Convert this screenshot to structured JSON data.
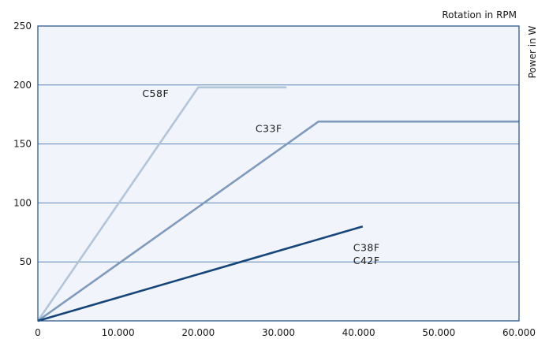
{
  "chart_data": {
    "type": "line",
    "title": "",
    "xlabel": "Rotation in RPM",
    "ylabel": "Power in W",
    "xlim": [
      0,
      60000
    ],
    "ylim": [
      0,
      250
    ],
    "x_ticks": [
      0,
      10000,
      20000,
      30000,
      40000,
      50000,
      60000
    ],
    "x_tick_labels": [
      "0",
      "10.000",
      "20.000",
      "30.000",
      "40.000",
      "50.000",
      "60.000"
    ],
    "y_ticks": [
      50,
      100,
      150,
      200,
      250
    ],
    "y_tick_labels": [
      "50",
      "100",
      "150",
      "200",
      "250"
    ],
    "grid": "horizontal",
    "series": [
      {
        "name": "C58F",
        "color": "#b3c5d9",
        "x": [
          0,
          20000,
          31000
        ],
        "y": [
          0,
          198,
          198
        ]
      },
      {
        "name": "C33F",
        "color": "#7f9abb",
        "x": [
          0,
          35000,
          60000
        ],
        "y": [
          0,
          169,
          169
        ]
      },
      {
        "name": "C38F",
        "name2": "C42F",
        "color": "#16457a",
        "x": [
          0,
          40500
        ],
        "y": [
          0,
          80
        ]
      }
    ],
    "annotations": [
      "C58F",
      "C33F",
      "C38F",
      "C42F"
    ],
    "colors": {
      "plot_background": "#f1f4fa",
      "frame": "#1f4e82",
      "grid": "#5d86b8"
    }
  }
}
